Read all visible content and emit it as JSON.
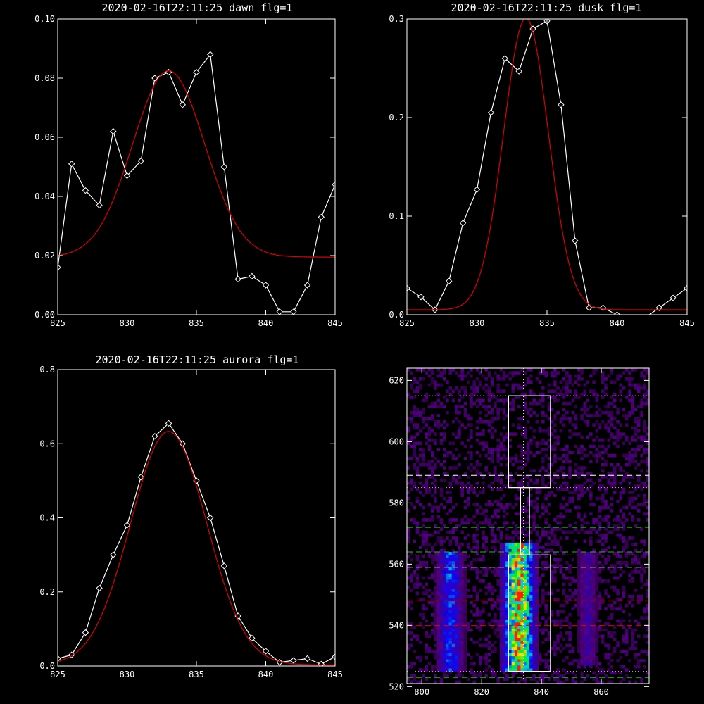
{
  "chart_data": [
    {
      "type": "line",
      "title": "2020-02-16T22:11:25 dawn flg=1",
      "xlim": [
        825,
        845
      ],
      "ylim": [
        0,
        0.1
      ],
      "xticks": [
        "825",
        "830",
        "835",
        "840",
        "845"
      ],
      "yticks": [
        "0.00",
        "0.02",
        "0.04",
        "0.06",
        "0.08",
        "0.10"
      ],
      "colors": {
        "data": "#ffffff",
        "fit": "#e00000"
      },
      "x": [
        825,
        826,
        827,
        828,
        829,
        830,
        831,
        832,
        833,
        834,
        835,
        836,
        837,
        838,
        839,
        840,
        841,
        842,
        843,
        844,
        845
      ],
      "series": [
        {
          "values": [
            0.016,
            0.051,
            0.042,
            0.037,
            0.062,
            0.047,
            0.052,
            0.08,
            0.082,
            0.071,
            0.082,
            0.088,
            0.05,
            0.012,
            0.013,
            0.01,
            0.001,
            0.001,
            0.01,
            0.033,
            0.044
          ]
        },
        {
          "fit": {
            "amp": 0.063,
            "center": 833.0,
            "sigma": 2.6,
            "offset": 0.0195
          }
        }
      ]
    },
    {
      "type": "line",
      "title": "2020-02-16T22:11:25 dusk flg=1",
      "xlim": [
        825,
        845
      ],
      "ylim": [
        0,
        0.3
      ],
      "xticks": [
        "825",
        "830",
        "835",
        "840",
        "845"
      ],
      "yticks": [
        "0.0",
        "0.1",
        "0.2",
        "0.3"
      ],
      "colors": {
        "data": "#ffffff",
        "fit": "#e00000"
      },
      "x": [
        825,
        826,
        827,
        828,
        829,
        830,
        831,
        832,
        833,
        834,
        835,
        836,
        837,
        838,
        839,
        840,
        841,
        842,
        843,
        844,
        845
      ],
      "series": [
        {
          "values": [
            0.027,
            0.018,
            0.005,
            0.034,
            0.093,
            0.127,
            0.205,
            0.26,
            0.247,
            0.29,
            0.298,
            0.213,
            0.075,
            0.007,
            0.007,
            0.0,
            -0.003,
            -0.003,
            0.007,
            0.017,
            0.027
          ]
        },
        {
          "fit": {
            "amp": 0.296,
            "center": 833.5,
            "sigma": 1.6,
            "offset": 0.005
          }
        }
      ]
    },
    {
      "type": "line",
      "title": "2020-02-16T22:11:25 aurora flg=1",
      "xlim": [
        825,
        845
      ],
      "ylim": [
        0,
        0.8
      ],
      "xticks": [
        "825",
        "830",
        "835",
        "840",
        "845"
      ],
      "yticks": [
        "0.0",
        "0.2",
        "0.4",
        "0.6",
        "0.8"
      ],
      "colors": {
        "data": "#ffffff",
        "fit": "#e00000"
      },
      "x": [
        825,
        826,
        827,
        828,
        829,
        830,
        831,
        832,
        833,
        834,
        835,
        836,
        837,
        838,
        839,
        840,
        841,
        842,
        843,
        844,
        845
      ],
      "series": [
        {
          "values": [
            0.02,
            0.03,
            0.09,
            0.21,
            0.3,
            0.38,
            0.51,
            0.62,
            0.655,
            0.6,
            0.5,
            0.4,
            0.27,
            0.135,
            0.075,
            0.04,
            0.01,
            0.015,
            0.02,
            0.005,
            0.025
          ]
        },
        {
          "fit": {
            "amp": 0.63,
            "center": 833.0,
            "sigma": 2.75,
            "offset": 0.003
          }
        }
      ]
    },
    {
      "type": "heatmap",
      "xlim": [
        795,
        876
      ],
      "ylim": [
        521,
        624
      ],
      "xticks": [
        "800",
        "820",
        "840",
        "860"
      ],
      "yticks": [
        "520",
        "540",
        "560",
        "580",
        "600",
        "620"
      ],
      "columns": [
        {
          "center": 809,
          "halfwidth": 4,
          "ymin": 525,
          "ymax": 563,
          "peak": 0.45
        },
        {
          "center": 832,
          "halfwidth": 5,
          "ymin": 525,
          "ymax": 566,
          "peak": 1.0
        },
        {
          "center": 855,
          "halfwidth": 3,
          "ymin": 527,
          "ymax": 563,
          "peak": 0.22
        }
      ],
      "boxes": [
        {
          "x": [
            829,
            843
          ],
          "y": [
            525,
            563
          ]
        },
        {
          "x": [
            833,
            836
          ],
          "y": [
            563,
            585
          ]
        },
        {
          "x": [
            829,
            843
          ],
          "y": [
            585,
            615
          ]
        }
      ],
      "vline": 834,
      "hlines": [
        {
          "y": 615,
          "style": "dotted",
          "color": "#ff80ff"
        },
        {
          "y": 589,
          "style": "dashed",
          "color": "#ffffff"
        },
        {
          "y": 585,
          "style": "dotted",
          "color": "#ff80ff"
        },
        {
          "y": 572,
          "style": "dashed",
          "color": "#00d000"
        },
        {
          "y": 564,
          "style": "dashed",
          "color": "#00d000"
        },
        {
          "y": 563,
          "style": "dotted",
          "color": "#ff80ff"
        },
        {
          "y": 559,
          "style": "dashed",
          "color": "#ffffff"
        },
        {
          "y": 548,
          "style": "dashed",
          "color": "#e00000"
        },
        {
          "y": 540,
          "style": "dashed",
          "color": "#e00000"
        },
        {
          "y": 525,
          "style": "dotted",
          "color": "#ff80ff"
        },
        {
          "y": 523,
          "style": "dashed",
          "color": "#00d000"
        }
      ]
    }
  ]
}
